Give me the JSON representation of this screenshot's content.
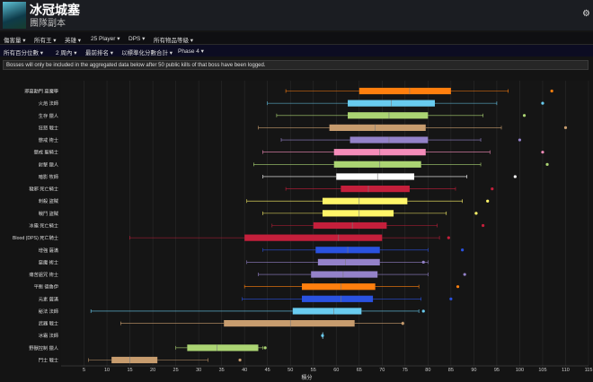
{
  "header": {
    "title": "冰冠城塞",
    "subtitle": "團隊副本",
    "settings_icon": "gear-icon"
  },
  "nav_primary": [
    "傷害量",
    "所有王",
    "英雄",
    "25 Player",
    "DPS",
    "所有物品等級"
  ],
  "nav_secondary": [
    "所有百分位數",
    "2 周內",
    "最前排名",
    "以標準化分數合計",
    "Phase 4"
  ],
  "notice": "Bosses will only be included in the aggregated data below after 50 public kills of that boss have been logged.",
  "chart_data": {
    "type": "box",
    "xlabel": "積分",
    "xlim": [
      0,
      115
    ],
    "xticks": [
      5,
      10,
      15,
      20,
      25,
      30,
      35,
      40,
      45,
      50,
      55,
      60,
      65,
      70,
      75,
      80,
      85,
      90,
      95,
      100,
      105,
      110,
      115
    ],
    "grid": true,
    "rows": [
      {
        "label": "邪惡勳門 惡魔學",
        "color": "#ff7f0e",
        "wl": 49,
        "q1": 65,
        "med": 76,
        "q3": 85,
        "wh": 97.5,
        "out": [
          107
        ]
      },
      {
        "label": "火焰 法師",
        "color": "#69ccf0",
        "wl": 45,
        "q1": 62.5,
        "med": 72,
        "q3": 81.5,
        "wh": 95,
        "out": [
          105
        ]
      },
      {
        "label": "生存 獵人",
        "color": "#abd473",
        "wl": 47,
        "q1": 62.5,
        "med": 71.5,
        "q3": 80,
        "wh": 92,
        "out": [
          101
        ]
      },
      {
        "label": "狂怒 戰士",
        "color": "#c79c6e",
        "wl": 43,
        "q1": 58.5,
        "med": 68.5,
        "q3": 79.5,
        "wh": 96,
        "out": [
          110
        ]
      },
      {
        "label": "懲戒 術士",
        "color": "#9482c9",
        "wl": 48,
        "q1": 63,
        "med": 71.5,
        "q3": 80,
        "wh": 91.5,
        "out": [
          100
        ]
      },
      {
        "label": "懲戒 聖騎士",
        "color": "#f58cba",
        "wl": 44,
        "q1": 59.5,
        "med": 69.5,
        "q3": 79.5,
        "wh": 93.5,
        "out": [
          105
        ]
      },
      {
        "label": "射擊 獵人",
        "color": "#abd473",
        "wl": 42,
        "q1": 59.5,
        "med": 69.5,
        "q3": 78.5,
        "wh": 91.5,
        "out": [
          106
        ]
      },
      {
        "label": "暗影 牧師",
        "color": "#ffffff",
        "wl": 44,
        "q1": 60,
        "med": 69,
        "q3": 77,
        "wh": 88.5,
        "out": [
          99
        ]
      },
      {
        "label": "穢邪 死亡騎士",
        "color": "#c41f3b",
        "wl": 49,
        "q1": 61,
        "med": 67,
        "q3": 76,
        "wh": 86,
        "out": [
          94
        ]
      },
      {
        "label": "刺殺 盜賊",
        "color": "#fff569",
        "wl": 40.5,
        "q1": 57,
        "med": 65,
        "q3": 75.5,
        "wh": 87.5,
        "out": [
          93
        ]
      },
      {
        "label": "戰鬥 盜賊",
        "color": "#fff569",
        "wl": 44,
        "q1": 57,
        "med": 65,
        "q3": 72.5,
        "wh": 84,
        "out": [
          90.5
        ]
      },
      {
        "label": "冰霜 死亡騎士",
        "color": "#c41f3b",
        "wl": 46,
        "q1": 55,
        "med": 63.5,
        "q3": 71,
        "wh": 82,
        "out": [
          92
        ]
      },
      {
        "label": "Blood (DPS) 死亡騎士",
        "color": "#c41f3b",
        "wl": 15,
        "q1": 40,
        "med": 60.5,
        "q3": 70,
        "wh": 82.5,
        "out": [
          84.5
        ]
      },
      {
        "label": "增強 薩滿",
        "color": "#2a52e0",
        "wl": 44,
        "q1": 55.5,
        "med": 62.5,
        "q3": 69.5,
        "wh": 80,
        "out": [
          87.5
        ]
      },
      {
        "label": "惡魔 術士",
        "color": "#9482c9",
        "wl": 40.5,
        "q1": 56,
        "med": 62,
        "q3": 69.5,
        "wh": 80,
        "out": [
          79
        ]
      },
      {
        "label": "痛苦詛咒 術士",
        "color": "#9482c9",
        "wl": 43,
        "q1": 54.5,
        "med": 61.5,
        "q3": 69,
        "wh": 80,
        "out": [
          88
        ]
      },
      {
        "label": "平衡 德魯伊",
        "color": "#ff7f0e",
        "wl": 40,
        "q1": 52.5,
        "med": 61,
        "q3": 68.5,
        "wh": 78,
        "out": [
          86.5
        ]
      },
      {
        "label": "元素 薩滿",
        "color": "#2a52e0",
        "wl": 39.5,
        "q1": 52.5,
        "med": 61,
        "q3": 68,
        "wh": 78.5,
        "out": [
          85
        ]
      },
      {
        "label": "秘法 法師",
        "color": "#69ccf0",
        "wl": 6.5,
        "q1": 50.5,
        "med": 59.5,
        "q3": 65.5,
        "wh": 78,
        "out": [
          79
        ]
      },
      {
        "label": "武器 戰士",
        "color": "#c79c6e",
        "wl": 13,
        "q1": 35.5,
        "med": 50,
        "q3": 64,
        "wh": 74.5,
        "out": [
          74.5
        ]
      },
      {
        "label": "冰霜 法師",
        "color": "#69ccf0",
        "wl": 57,
        "q1": 57,
        "med": 57,
        "q3": 57,
        "wh": 57,
        "out": [
          57
        ]
      },
      {
        "label": "野獸控制 獵人",
        "color": "#abd473",
        "wl": 25,
        "q1": 27.5,
        "med": 34,
        "q3": 43,
        "wh": 44,
        "out": [
          44.5
        ]
      },
      {
        "label": "鬥士 戰士",
        "color": "#c79c6e",
        "wl": 6,
        "q1": 11,
        "med": 15,
        "q3": 21,
        "wh": 32,
        "out": [
          39
        ]
      }
    ]
  }
}
